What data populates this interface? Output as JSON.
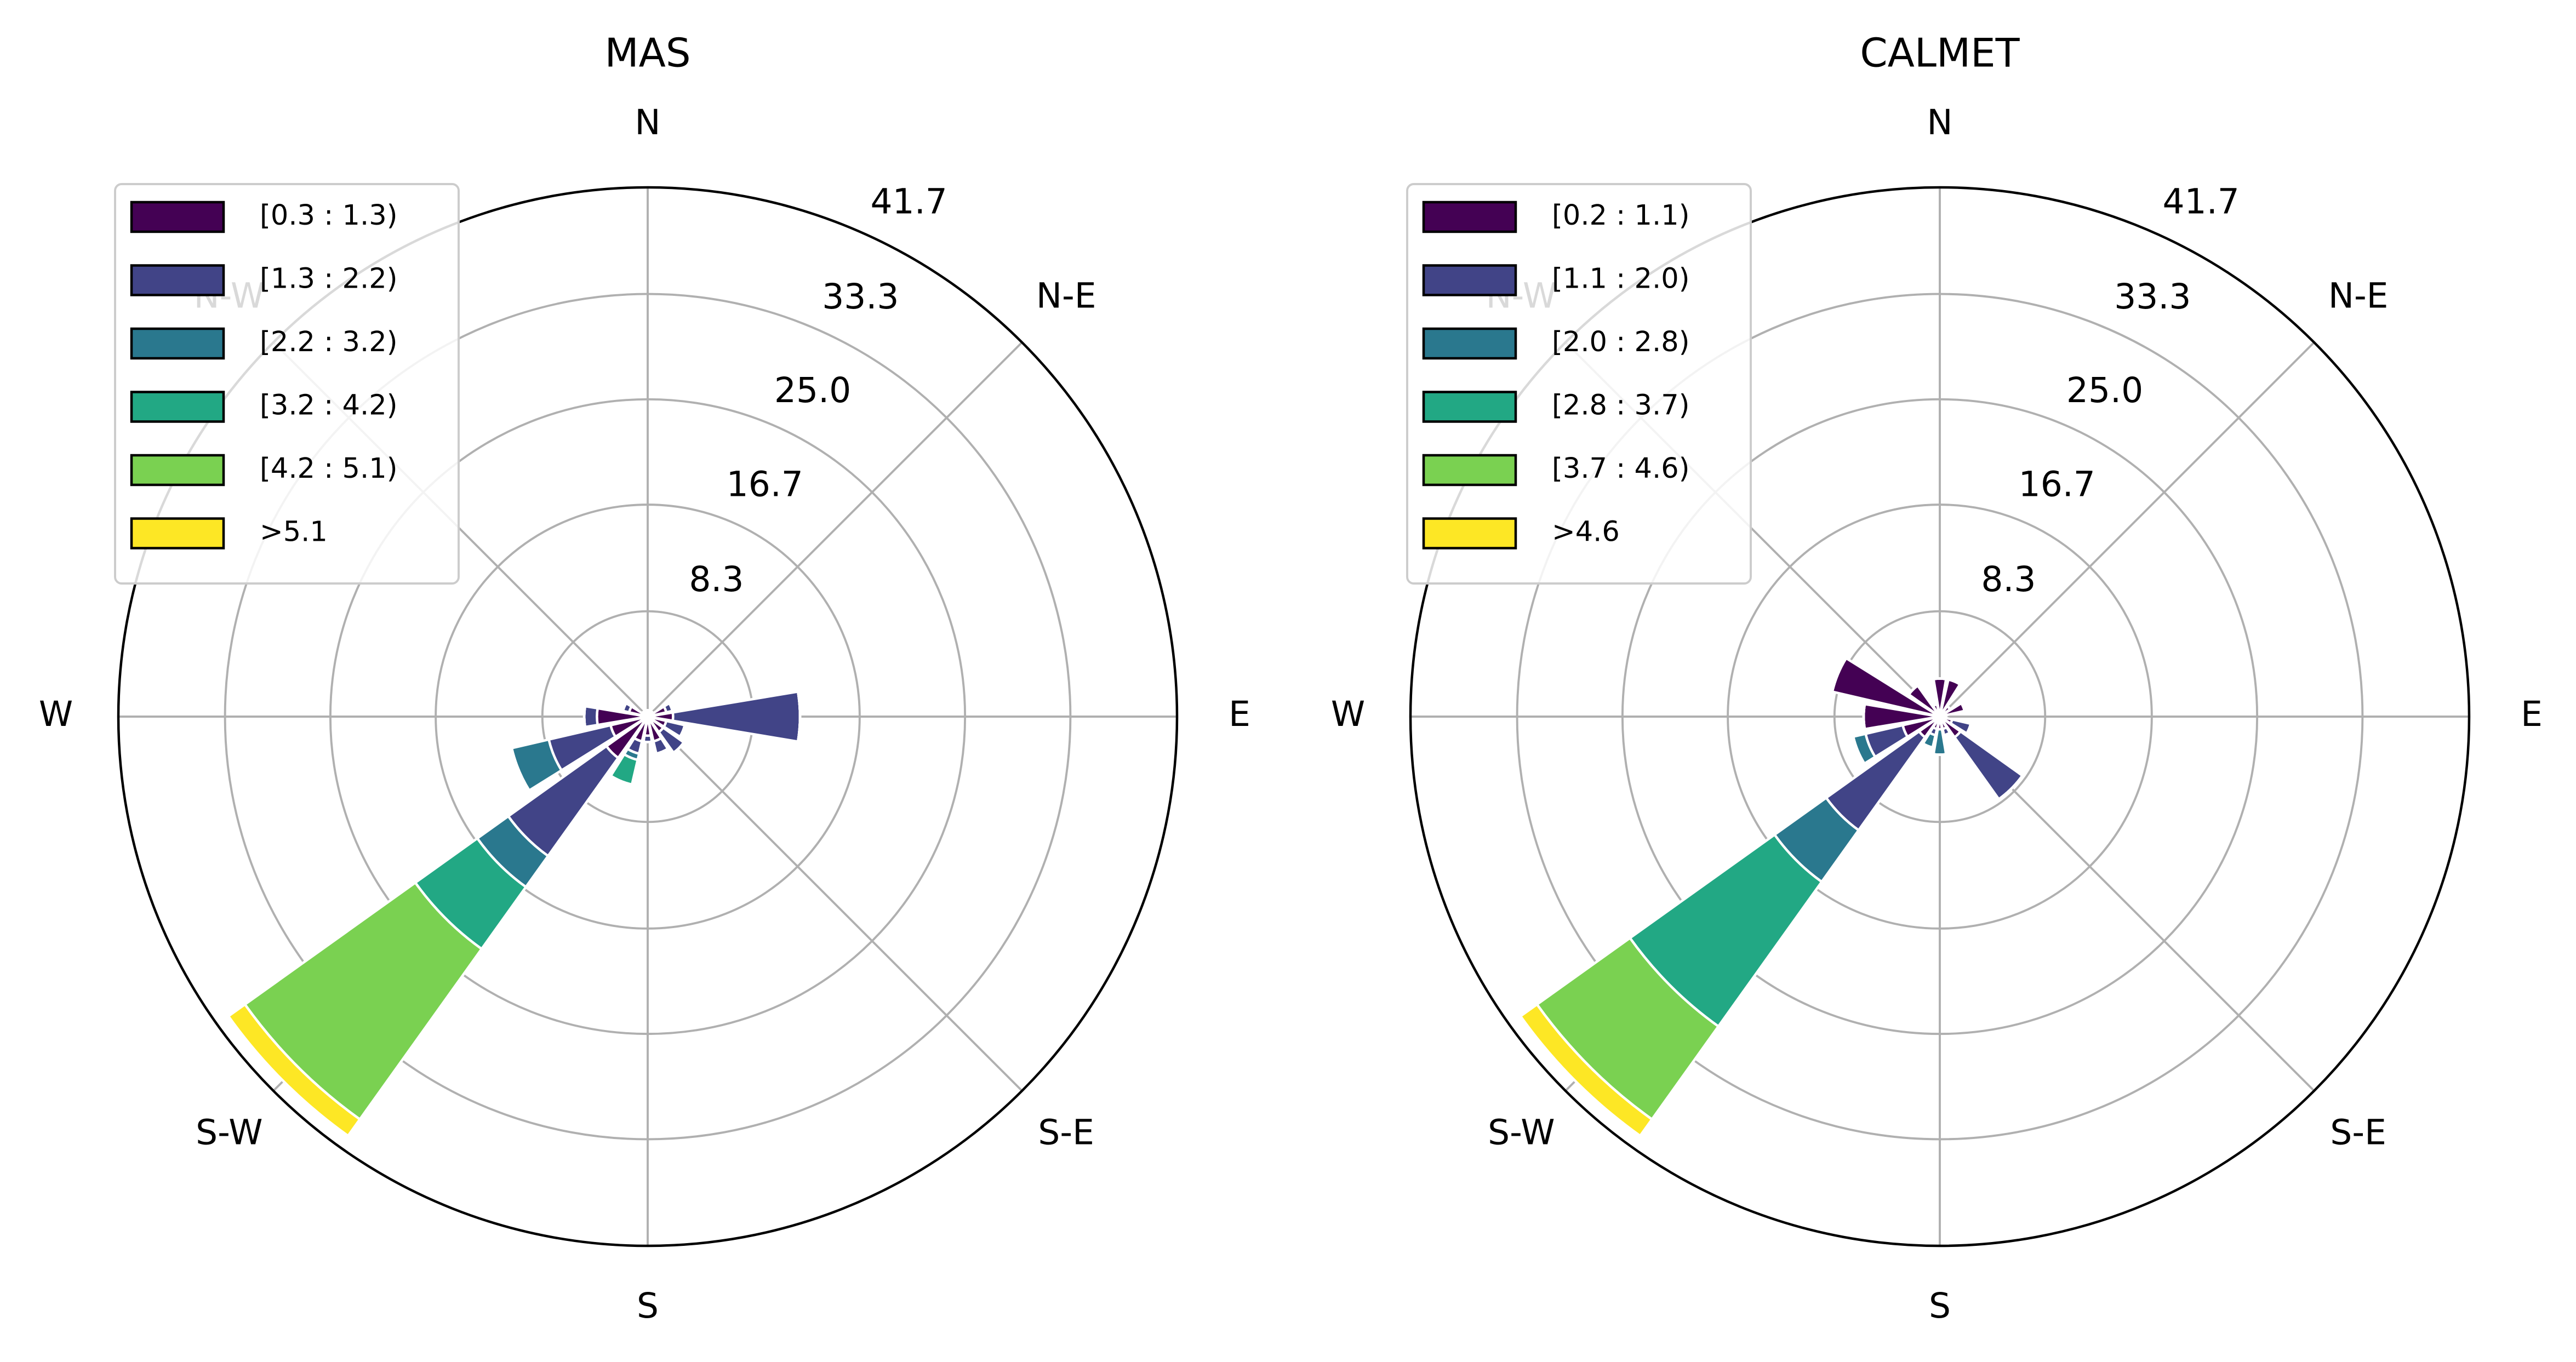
{
  "chart_data": [
    {
      "type": "windrose",
      "title": "MAS",
      "categories": [
        "N",
        null,
        "N-E",
        null,
        "E",
        null,
        "S-E",
        null,
        "S",
        null,
        "S-W",
        null,
        "W",
        null,
        "N-W",
        null
      ],
      "series": [
        {
          "name": "[0.3 : 1.3)",
          "color": "#440154",
          "values": [
            0.5,
            0.5,
            0.5,
            1.5,
            2,
            1.5,
            1.5,
            2,
            1.5,
            2,
            4,
            3,
            4,
            1.5,
            0.5,
            0.5
          ]
        },
        {
          "name": "[1.3 : 2.2)",
          "color": "#414487",
          "values": [
            0,
            0,
            0,
            0.5,
            10,
            1.5,
            2,
            1,
            0.5,
            1,
            9.5,
            5,
            1,
            0.5,
            0,
            0
          ]
        },
        {
          "name": "[2.2 : 3.2)",
          "color": "#2a788e",
          "values": [
            0,
            0,
            0,
            0,
            0,
            0,
            0,
            0,
            0,
            0.5,
            3,
            3,
            0,
            0,
            0,
            0
          ]
        },
        {
          "name": "[3.2 : 4.2)",
          "color": "#22a884",
          "values": [
            0,
            0,
            0,
            0,
            0,
            0,
            0,
            0,
            0,
            2,
            6,
            0,
            0,
            0,
            0,
            0
          ]
        },
        {
          "name": "[4.2 : 5.1)",
          "color": "#7ad151",
          "values": [
            0,
            0,
            0,
            0,
            0,
            0,
            0,
            0,
            0,
            0,
            16.5,
            0,
            0,
            0,
            0,
            0
          ]
        },
        {
          "name": ">5.1",
          "color": "#fde725",
          "values": [
            0,
            0,
            0,
            0,
            0,
            0,
            0,
            0,
            0,
            0,
            1.6,
            0,
            0,
            0,
            0,
            0
          ]
        }
      ],
      "ylim": [
        0,
        41.7
      ],
      "yticks": [
        8.3,
        16.7,
        {
          "value": 25,
          "label": "25.0"
        },
        33.3,
        41.7
      ],
      "grid": true,
      "legend": "upper left"
    },
    {
      "type": "windrose",
      "title": "CALMET",
      "categories": [
        "N",
        null,
        "N-E",
        null,
        "E",
        null,
        "S-E",
        null,
        "S",
        null,
        "S-W",
        null,
        "W",
        null,
        "N-W",
        null
      ],
      "series": [
        {
          "name": "[0.2 : 1.1)",
          "color": "#440154",
          "values": [
            3,
            3,
            1,
            2,
            0.5,
            1,
            2,
            1,
            1,
            1,
            2,
            3,
            6,
            8.7,
            3,
            1
          ]
        },
        {
          "name": "[1.1 : 2.0)",
          "color": "#414487",
          "values": [
            0,
            0,
            0,
            0,
            0,
            1.5,
            6,
            0.5,
            0,
            0.5,
            9,
            3,
            0,
            0,
            0,
            0
          ]
        },
        {
          "name": "[2.0 : 2.8)",
          "color": "#2a788e",
          "values": [
            0,
            0,
            0,
            0,
            0,
            0,
            0,
            0,
            2,
            1,
            5,
            1,
            0,
            0,
            0,
            0
          ]
        },
        {
          "name": "[2.8 : 3.7)",
          "color": "#22a884",
          "values": [
            0,
            0,
            0,
            0,
            0,
            0,
            0,
            0,
            0,
            0,
            14,
            0,
            0,
            0,
            0,
            0
          ]
        },
        {
          "name": "[3.7 : 4.6)",
          "color": "#7ad151",
          "values": [
            0,
            0,
            0,
            0,
            0,
            0,
            0,
            0,
            0,
            0,
            9,
            0,
            0,
            0,
            0,
            0
          ]
        },
        {
          "name": ">4.6",
          "color": "#fde725",
          "values": [
            0,
            0,
            0,
            0,
            0,
            0,
            0,
            0,
            0,
            0,
            1.6,
            0,
            0,
            0,
            0,
            0
          ]
        }
      ],
      "ylim": [
        0,
        41.7
      ],
      "yticks": [
        8.3,
        16.7,
        {
          "value": 25,
          "label": "25.0"
        },
        33.3,
        41.7
      ],
      "grid": true,
      "legend": "upper left"
    }
  ]
}
